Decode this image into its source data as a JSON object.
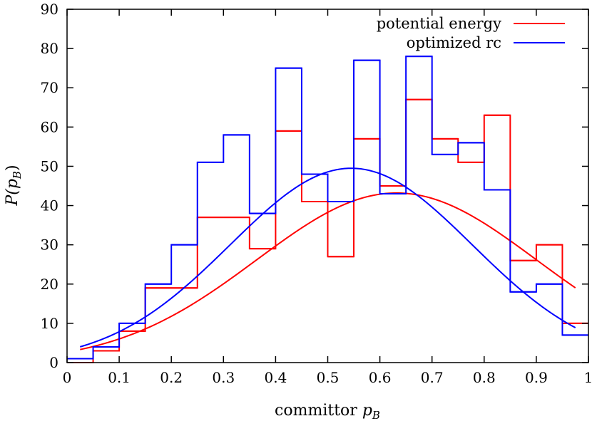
{
  "chart_data": {
    "type": "line",
    "title": "",
    "xlabel": "committor p_B",
    "xlabel_parts": {
      "main": "committor ",
      "var": "p",
      "sub": "B"
    },
    "ylabel": "P(p_B)",
    "ylabel_parts": {
      "main": "P(",
      "var": "p",
      "sub": "B",
      "close": ")"
    },
    "xlim": [
      0,
      1
    ],
    "ylim": [
      0,
      90
    ],
    "xticks": [
      0,
      0.1,
      0.2,
      0.3,
      0.4,
      0.5,
      0.6,
      0.7,
      0.8,
      0.9,
      1
    ],
    "xtick_labels": [
      "0",
      "0.1",
      "0.2",
      "0.3",
      "0.4",
      "0.5",
      "0.6",
      "0.7",
      "0.8",
      "0.9",
      "1"
    ],
    "yticks": [
      0,
      10,
      20,
      30,
      40,
      50,
      60,
      70,
      80,
      90
    ],
    "ytick_labels": [
      "0",
      "10",
      "20",
      "30",
      "40",
      "50",
      "60",
      "70",
      "80",
      "90"
    ],
    "grid": false,
    "legend_position": "top-right",
    "bin_edges": [
      0,
      0.05,
      0.1,
      0.15,
      0.2,
      0.25,
      0.3,
      0.35,
      0.4,
      0.45,
      0.5,
      0.55,
      0.6,
      0.65,
      0.7,
      0.75,
      0.8,
      0.85,
      0.9,
      0.95,
      1.0
    ],
    "series": [
      {
        "name": "potential energy",
        "color": "#ff0000",
        "histogram": [
          0,
          3,
          8,
          19,
          19,
          37,
          37,
          29,
          59,
          41,
          27,
          57,
          45,
          67,
          57,
          51,
          63,
          26,
          30,
          10
        ],
        "fit": {
          "amplitude": 43.2,
          "mean": 0.632,
          "sigma": 0.268,
          "x_range": [
            0.025,
            0.975
          ]
        }
      },
      {
        "name": "optimized rc",
        "color": "#0000ff",
        "histogram": [
          1,
          4,
          10,
          20,
          30,
          51,
          58,
          38,
          75,
          48,
          41,
          77,
          43,
          78,
          53,
          56,
          44,
          18,
          20,
          7
        ],
        "fit": {
          "amplitude": 49.5,
          "mean": 0.545,
          "sigma": 0.232,
          "x_range": [
            0.025,
            0.975
          ]
        }
      }
    ]
  }
}
